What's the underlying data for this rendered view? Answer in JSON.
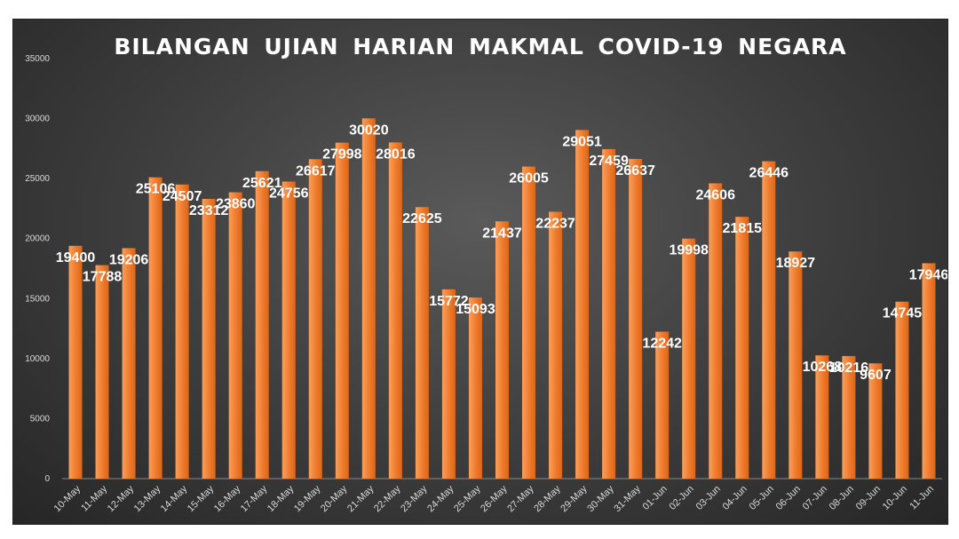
{
  "chart_data": {
    "type": "bar",
    "title": "BILANGAN UJIAN HARIAN MAKMAL COVID-19 NEGARA",
    "xlabel": "",
    "ylabel": "",
    "ylim": [
      0,
      35000
    ],
    "yticks": [
      0,
      5000,
      10000,
      15000,
      20000,
      25000,
      30000,
      35000
    ],
    "grid": false,
    "legend": "none",
    "colors": {
      "bar": "#f07a2a",
      "bar_light": "#f7a060",
      "background": "#3f3f3f",
      "text": "#ffffff"
    },
    "categories": [
      "10-May",
      "11-May",
      "12-May",
      "13-May",
      "14-May",
      "15-May",
      "16-May",
      "17-May",
      "18-May",
      "19-May",
      "20-May",
      "21-May",
      "22-May",
      "23-May",
      "24-May",
      "25-May",
      "26-May",
      "27-May",
      "28-May",
      "29-May",
      "30-May",
      "31-May",
      "01-Jun",
      "02-Jun",
      "03-Jun",
      "04-Jun",
      "05-Jun",
      "06-Jun",
      "07-Jun",
      "08-Jun",
      "09-Jun",
      "10-Jun",
      "11-Jun"
    ],
    "values": [
      19400,
      17788,
      19206,
      25106,
      24507,
      23312,
      23860,
      25621,
      24756,
      26617,
      27998,
      30020,
      28016,
      22625,
      15772,
      15093,
      21437,
      26005,
      22237,
      29051,
      27459,
      26637,
      12242,
      19998,
      24606,
      21815,
      26446,
      18927,
      10268,
      10216,
      9607,
      14745,
      17946
    ]
  }
}
